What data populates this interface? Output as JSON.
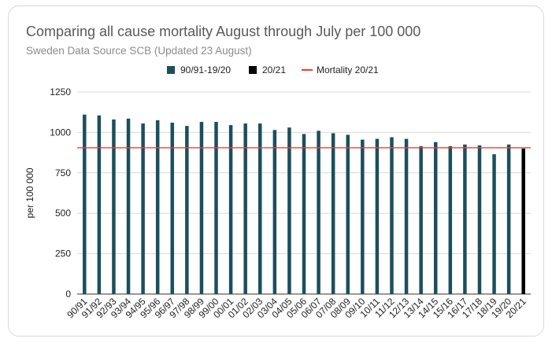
{
  "chart_data": {
    "type": "bar",
    "title": "Comparing all cause mortality August through July per 100 000",
    "subtitle": "Sweden Data Source SCB (Updated 23 August)",
    "ylabel": "per 100 000",
    "xlabel": "",
    "ylim": [
      0,
      1250
    ],
    "yticks": [
      0,
      250,
      500,
      750,
      1000,
      1250
    ],
    "grid": true,
    "legend_placement": "top",
    "legend": [
      {
        "label": "90/91-19/20",
        "color": "#1b4f5c",
        "kind": "box"
      },
      {
        "label": "20/21",
        "color": "#000000",
        "kind": "box"
      },
      {
        "label": "Mortality 20/21",
        "color": "#e8403a",
        "kind": "line"
      }
    ],
    "categories": [
      "90/91",
      "91/92",
      "92/93",
      "93/94",
      "94/95",
      "95/96",
      "96/97",
      "97/98",
      "98/99",
      "99/00",
      "00/01",
      "01/02",
      "02/03",
      "03/04",
      "04/05",
      "05/06",
      "06/07",
      "07/08",
      "08/09",
      "09/10",
      "10/11",
      "11/12",
      "12/13",
      "13/14",
      "14/15",
      "15/16",
      "16/17",
      "17/18",
      "18/19",
      "19/20",
      "20/21"
    ],
    "series": [
      {
        "name": "90/91-19/20",
        "color": "#1b4f5c",
        "values": [
          1110,
          1105,
          1080,
          1085,
          1055,
          1075,
          1060,
          1040,
          1065,
          1065,
          1045,
          1055,
          1055,
          1015,
          1030,
          990,
          1010,
          995,
          985,
          955,
          960,
          970,
          960,
          915,
          940,
          915,
          925,
          920,
          865,
          925,
          null
        ]
      },
      {
        "name": "20/21",
        "color": "#000000",
        "values": [
          null,
          null,
          null,
          null,
          null,
          null,
          null,
          null,
          null,
          null,
          null,
          null,
          null,
          null,
          null,
          null,
          null,
          null,
          null,
          null,
          null,
          null,
          null,
          null,
          null,
          null,
          null,
          null,
          null,
          null,
          900
        ]
      }
    ],
    "reference_line": {
      "name": "Mortality 20/21",
      "value": 905,
      "color": "#e8403a"
    }
  }
}
